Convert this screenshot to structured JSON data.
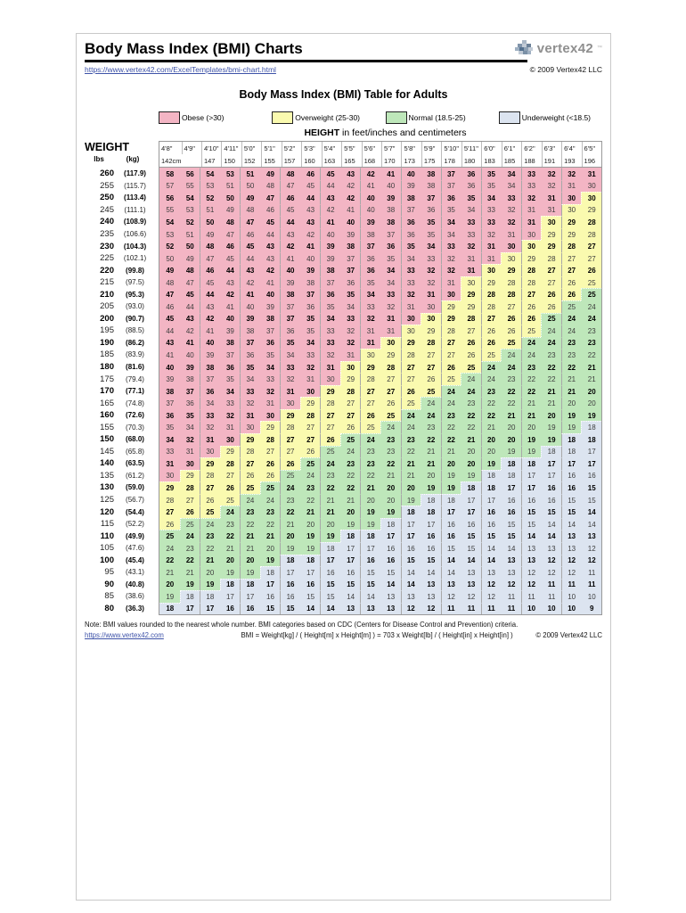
{
  "header": {
    "title": "Body Mass Index (BMI) Charts",
    "url": "https://www.vertex42.com/ExcelTemplates/bmi-chart.html",
    "copyright": "© 2009 Vertex42 LLC",
    "logo_text": "vertex42",
    "logo_tm": "™"
  },
  "table_title": "Body Mass Index (BMI) Table for Adults",
  "legend": [
    {
      "key": "O",
      "label": "Obese (>30)",
      "color": "#F3B5C4"
    },
    {
      "key": "Y",
      "label": "Overweight (25-30)",
      "color": "#FAFAAF"
    },
    {
      "key": "N",
      "label": "Normal (18.5-25)",
      "color": "#BEE7BA"
    },
    {
      "key": "U",
      "label": "Underweight (<18.5)",
      "color": "#DCE4F0"
    }
  ],
  "colors": {
    "O": "#F3B5C4",
    "Y": "#FAFAAF",
    "N": "#BEE7BA",
    "U": "#DCE4F0"
  },
  "height_caption": {
    "bold": "HEIGHT",
    "rest": " in feet/inches and centimeters"
  },
  "weight_header": {
    "title": "WEIGHT",
    "unit_lbs": "lbs",
    "unit_kg": "(kg)"
  },
  "columns": {
    "feet": [
      "4'8\"",
      "4'9\"",
      "4'10\"",
      "4'11\"",
      "5'0\"",
      "5'1\"",
      "5'2\"",
      "5'3\"",
      "5'4\"",
      "5'5\"",
      "5'6\"",
      "5'7\"",
      "5'8\"",
      "5'9\"",
      "5'10\"",
      "5'11\"",
      "6'0\"",
      "6'1\"",
      "6'2\"",
      "6'3\"",
      "6'4\"",
      "6'5\""
    ],
    "cm": [
      "142cm",
      "",
      "147",
      "150",
      "152",
      "155",
      "157",
      "160",
      "163",
      "165",
      "168",
      "170",
      "173",
      "175",
      "178",
      "180",
      "183",
      "185",
      "188",
      "191",
      "193",
      "196"
    ]
  },
  "rows": [
    {
      "lbs": "260",
      "kg": "(117.9)",
      "bold": true,
      "v": [
        58,
        56,
        54,
        53,
        51,
        49,
        48,
        46,
        45,
        43,
        42,
        41,
        40,
        38,
        37,
        36,
        35,
        34,
        33,
        32,
        32,
        31
      ],
      "c": "OOOOOOOOOOOOOOOOOOOOOO"
    },
    {
      "lbs": "255",
      "kg": "(115.7)",
      "bold": false,
      "v": [
        57,
        55,
        53,
        51,
        50,
        48,
        47,
        45,
        44,
        42,
        41,
        40,
        39,
        38,
        37,
        36,
        35,
        34,
        33,
        32,
        31,
        30
      ],
      "c": "OOOOOOOOOOOOOOOOOOOOOO"
    },
    {
      "lbs": "250",
      "kg": "(113.4)",
      "bold": true,
      "v": [
        56,
        54,
        52,
        50,
        49,
        47,
        46,
        44,
        43,
        42,
        40,
        39,
        38,
        37,
        36,
        35,
        34,
        33,
        32,
        31,
        30,
        30
      ],
      "c": "OOOOOOOOOOOOOOOOOOOOOY"
    },
    {
      "lbs": "245",
      "kg": "(111.1)",
      "bold": false,
      "v": [
        55,
        53,
        51,
        49,
        48,
        46,
        45,
        43,
        42,
        41,
        40,
        38,
        37,
        36,
        35,
        34,
        33,
        32,
        31,
        31,
        30,
        29
      ],
      "c": "OOOOOOOOOOOOOOOOOOOOYY"
    },
    {
      "lbs": "240",
      "kg": "(108.9)",
      "bold": true,
      "v": [
        54,
        52,
        50,
        48,
        47,
        45,
        44,
        43,
        41,
        40,
        39,
        38,
        36,
        35,
        34,
        33,
        33,
        32,
        31,
        30,
        29,
        28
      ],
      "c": "OOOOOOOOOOOOOOOOOOOYYY"
    },
    {
      "lbs": "235",
      "kg": "(106.6)",
      "bold": false,
      "v": [
        53,
        51,
        49,
        47,
        46,
        44,
        43,
        42,
        40,
        39,
        38,
        37,
        36,
        35,
        34,
        33,
        32,
        31,
        30,
        29,
        29,
        28
      ],
      "c": "OOOOOOOOOOOOOOOOOOOYYY"
    },
    {
      "lbs": "230",
      "kg": "(104.3)",
      "bold": true,
      "v": [
        52,
        50,
        48,
        46,
        45,
        43,
        42,
        41,
        39,
        38,
        37,
        36,
        35,
        34,
        33,
        32,
        31,
        30,
        30,
        29,
        28,
        27
      ],
      "c": "OOOOOOOOOOOOOOOOOOYYYY"
    },
    {
      "lbs": "225",
      "kg": "(102.1)",
      "bold": false,
      "v": [
        50,
        49,
        47,
        45,
        44,
        43,
        41,
        40,
        39,
        37,
        36,
        35,
        34,
        33,
        32,
        31,
        31,
        30,
        29,
        28,
        27,
        27
      ],
      "c": "OOOOOOOOOOOOOOOOOYYYYY"
    },
    {
      "lbs": "220",
      "kg": "(99.8)",
      "bold": true,
      "v": [
        49,
        48,
        46,
        44,
        43,
        42,
        40,
        39,
        38,
        37,
        36,
        34,
        33,
        32,
        32,
        31,
        30,
        29,
        28,
        27,
        27,
        26
      ],
      "c": "OOOOOOOOOOOOOOOOYYYYYY"
    },
    {
      "lbs": "215",
      "kg": "(97.5)",
      "bold": false,
      "v": [
        48,
        47,
        45,
        43,
        42,
        41,
        39,
        38,
        37,
        36,
        35,
        34,
        33,
        32,
        31,
        30,
        29,
        28,
        28,
        27,
        26,
        25
      ],
      "c": "OOOOOOOOOOOOOOOYYYYYYY"
    },
    {
      "lbs": "210",
      "kg": "(95.3)",
      "bold": true,
      "v": [
        47,
        45,
        44,
        42,
        41,
        40,
        38,
        37,
        36,
        35,
        34,
        33,
        32,
        31,
        30,
        29,
        28,
        28,
        27,
        26,
        26,
        25
      ],
      "c": "OOOOOOOOOOOOOOOYYYYYYN"
    },
    {
      "lbs": "205",
      "kg": "(93.0)",
      "bold": false,
      "v": [
        46,
        44,
        43,
        41,
        40,
        39,
        37,
        36,
        35,
        34,
        33,
        32,
        31,
        30,
        29,
        29,
        28,
        27,
        26,
        26,
        25,
        24
      ],
      "c": "OOOOOOOOOOOOOOYYYYYYNN"
    },
    {
      "lbs": "200",
      "kg": "(90.7)",
      "bold": true,
      "v": [
        45,
        43,
        42,
        40,
        39,
        38,
        37,
        35,
        34,
        33,
        32,
        31,
        30,
        30,
        29,
        28,
        27,
        26,
        26,
        25,
        24,
        24
      ],
      "c": "OOOOOOOOOOOOOYYYYYYNNN"
    },
    {
      "lbs": "195",
      "kg": "(88.5)",
      "bold": false,
      "v": [
        44,
        42,
        41,
        39,
        38,
        37,
        36,
        35,
        33,
        32,
        31,
        31,
        30,
        29,
        28,
        27,
        26,
        26,
        25,
        24,
        24,
        23
      ],
      "c": "OOOOOOOOOOOOYYYYYYYNNN"
    },
    {
      "lbs": "190",
      "kg": "(86.2)",
      "bold": true,
      "v": [
        43,
        41,
        40,
        38,
        37,
        36,
        35,
        34,
        33,
        32,
        31,
        30,
        29,
        28,
        27,
        26,
        26,
        25,
        24,
        24,
        23,
        23
      ],
      "c": "OOOOOOOOOOOYYYYYYYNNNN"
    },
    {
      "lbs": "185",
      "kg": "(83.9)",
      "bold": false,
      "v": [
        41,
        40,
        39,
        37,
        36,
        35,
        34,
        33,
        32,
        31,
        30,
        29,
        28,
        27,
        27,
        26,
        25,
        24,
        24,
        23,
        23,
        22
      ],
      "c": "OOOOOOOOOOYYYYYYYNNNNN"
    },
    {
      "lbs": "180",
      "kg": "(81.6)",
      "bold": true,
      "v": [
        40,
        39,
        38,
        36,
        35,
        34,
        33,
        32,
        31,
        30,
        29,
        28,
        27,
        27,
        26,
        25,
        24,
        24,
        23,
        22,
        22,
        21
      ],
      "c": "OOOOOOOOOYYYYYYYNNNNNN"
    },
    {
      "lbs": "175",
      "kg": "(79.4)",
      "bold": false,
      "v": [
        39,
        38,
        37,
        35,
        34,
        33,
        32,
        31,
        30,
        29,
        28,
        27,
        27,
        26,
        25,
        24,
        24,
        23,
        22,
        22,
        21,
        21
      ],
      "c": "OOOOOOOOOYYYYYYNNNNNNN"
    },
    {
      "lbs": "170",
      "kg": "(77.1)",
      "bold": true,
      "v": [
        38,
        37,
        36,
        34,
        33,
        32,
        31,
        30,
        29,
        28,
        27,
        27,
        26,
        25,
        24,
        24,
        23,
        22,
        22,
        21,
        21,
        20
      ],
      "c": "OOOOOOOOYYYYYYNNNNNNNN"
    },
    {
      "lbs": "165",
      "kg": "(74.8)",
      "bold": false,
      "v": [
        37,
        36,
        34,
        33,
        32,
        31,
        30,
        29,
        28,
        27,
        27,
        26,
        25,
        24,
        24,
        23,
        22,
        22,
        21,
        21,
        20,
        20
      ],
      "c": "OOOOOOOYYYYYYNNNNNNNNN"
    },
    {
      "lbs": "160",
      "kg": "(72.6)",
      "bold": true,
      "v": [
        36,
        35,
        33,
        32,
        31,
        30,
        29,
        28,
        27,
        27,
        26,
        25,
        24,
        24,
        23,
        22,
        22,
        21,
        21,
        20,
        19,
        19
      ],
      "c": "OOOOOOYYYYYYNNNNNNNNNN"
    },
    {
      "lbs": "155",
      "kg": "(70.3)",
      "bold": false,
      "v": [
        35,
        34,
        32,
        31,
        30,
        29,
        28,
        27,
        27,
        26,
        25,
        24,
        24,
        23,
        22,
        22,
        21,
        20,
        20,
        19,
        19,
        18
      ],
      "c": "OOOOOYYYYYYNNNNNNNNNNU"
    },
    {
      "lbs": "150",
      "kg": "(68.0)",
      "bold": true,
      "v": [
        34,
        32,
        31,
        30,
        29,
        28,
        27,
        27,
        26,
        25,
        24,
        23,
        23,
        22,
        22,
        21,
        20,
        20,
        19,
        19,
        18,
        18
      ],
      "c": "OOOOYYYYYNNNNNNNNNNNUU"
    },
    {
      "lbs": "145",
      "kg": "(65.8)",
      "bold": false,
      "v": [
        33,
        31,
        30,
        29,
        28,
        27,
        27,
        26,
        25,
        24,
        23,
        23,
        22,
        21,
        21,
        20,
        20,
        19,
        19,
        18,
        18,
        17
      ],
      "c": "OOOYYYYYNNNNNNNNNNNUUU"
    },
    {
      "lbs": "140",
      "kg": "(63.5)",
      "bold": true,
      "v": [
        31,
        30,
        29,
        28,
        27,
        26,
        26,
        25,
        24,
        23,
        23,
        22,
        21,
        21,
        20,
        20,
        19,
        18,
        18,
        17,
        17,
        17
      ],
      "c": "OOYYYYYNNNNNNNNNNUUUUU"
    },
    {
      "lbs": "135",
      "kg": "(61.2)",
      "bold": false,
      "v": [
        30,
        29,
        28,
        27,
        26,
        26,
        25,
        24,
        23,
        22,
        22,
        21,
        21,
        20,
        19,
        19,
        18,
        18,
        17,
        17,
        16,
        16
      ],
      "c": "OYYYYYNNNNNNNNNNUUUUUU"
    },
    {
      "lbs": "130",
      "kg": "(59.0)",
      "bold": true,
      "v": [
        29,
        28,
        27,
        26,
        25,
        25,
        24,
        23,
        22,
        22,
        21,
        20,
        20,
        19,
        19,
        18,
        18,
        17,
        17,
        16,
        16,
        15
      ],
      "c": "YYYYYNNNNNNNNNNUUUUUUU"
    },
    {
      "lbs": "125",
      "kg": "(56.7)",
      "bold": false,
      "v": [
        28,
        27,
        26,
        25,
        24,
        24,
        23,
        22,
        21,
        21,
        20,
        20,
        19,
        18,
        18,
        17,
        17,
        16,
        16,
        16,
        15,
        15
      ],
      "c": "YYYYNNNNNNNNNUUUUUUUUU"
    },
    {
      "lbs": "120",
      "kg": "(54.4)",
      "bold": true,
      "v": [
        27,
        26,
        25,
        24,
        23,
        23,
        22,
        21,
        21,
        20,
        19,
        19,
        18,
        18,
        17,
        17,
        16,
        16,
        15,
        15,
        15,
        14
      ],
      "c": "YYYNNNNNNNNNUUUUUUUUUU"
    },
    {
      "lbs": "115",
      "kg": "(52.2)",
      "bold": false,
      "v": [
        26,
        25,
        24,
        23,
        22,
        22,
        21,
        20,
        20,
        19,
        19,
        18,
        17,
        17,
        16,
        16,
        16,
        15,
        15,
        14,
        14,
        14
      ],
      "c": "YNNNNNNNNNNUUUUUUUUUUU"
    },
    {
      "lbs": "110",
      "kg": "(49.9)",
      "bold": true,
      "v": [
        25,
        24,
        23,
        22,
        21,
        21,
        20,
        19,
        19,
        18,
        18,
        17,
        17,
        16,
        16,
        15,
        15,
        15,
        14,
        14,
        13,
        13
      ],
      "c": "NNNNNNNNNUUUUUUUUUUUUU"
    },
    {
      "lbs": "105",
      "kg": "(47.6)",
      "bold": false,
      "v": [
        24,
        23,
        22,
        21,
        21,
        20,
        19,
        19,
        18,
        17,
        17,
        16,
        16,
        16,
        15,
        15,
        14,
        14,
        13,
        13,
        13,
        12
      ],
      "c": "NNNNNNNNUUUUUUUUUUUUUU"
    },
    {
      "lbs": "100",
      "kg": "(45.4)",
      "bold": true,
      "v": [
        22,
        22,
        21,
        20,
        20,
        19,
        18,
        18,
        17,
        17,
        16,
        16,
        15,
        15,
        14,
        14,
        14,
        13,
        13,
        12,
        12,
        12
      ],
      "c": "NNNNNNUUUUUUUUUUUUUUUU"
    },
    {
      "lbs": "95",
      "kg": "(43.1)",
      "bold": false,
      "v": [
        21,
        21,
        20,
        19,
        19,
        18,
        17,
        17,
        16,
        16,
        15,
        15,
        14,
        14,
        14,
        13,
        13,
        13,
        12,
        12,
        12,
        11
      ],
      "c": "NNNNNUUUUUUUUUUUUUUUUU"
    },
    {
      "lbs": "90",
      "kg": "(40.8)",
      "bold": true,
      "v": [
        20,
        19,
        19,
        18,
        18,
        17,
        16,
        16,
        15,
        15,
        15,
        14,
        14,
        13,
        13,
        13,
        12,
        12,
        12,
        11,
        11,
        11
      ],
      "c": "NNNUUUUUUUUUUUUUUUUUUU"
    },
    {
      "lbs": "85",
      "kg": "(38.6)",
      "bold": false,
      "v": [
        19,
        18,
        18,
        17,
        17,
        16,
        16,
        15,
        15,
        14,
        14,
        13,
        13,
        13,
        12,
        12,
        12,
        11,
        11,
        11,
        10,
        10
      ],
      "c": "NUUUUUUUUUUUUUUUUUUUUU"
    },
    {
      "lbs": "80",
      "kg": "(36.3)",
      "bold": true,
      "v": [
        18,
        17,
        17,
        16,
        16,
        15,
        15,
        14,
        14,
        13,
        13,
        13,
        12,
        12,
        11,
        11,
        11,
        11,
        10,
        10,
        10,
        9
      ],
      "c": "UUUUUUUUUUUUUUUUUUUUUU"
    }
  ],
  "footer": {
    "note": "Note: BMI values rounded to the nearest whole number. BMI categories based on CDC (Centers for Disease Control and Prevention) criteria.",
    "link": "https://www.vertex42.com",
    "formula": "BMI = Weight[kg] / ( Height[m] x Height[m] ) = 703 x Weight[lb] / ( Height[in] x Height[in] )",
    "copyright": "© 2009 Vertex42 LLC"
  }
}
